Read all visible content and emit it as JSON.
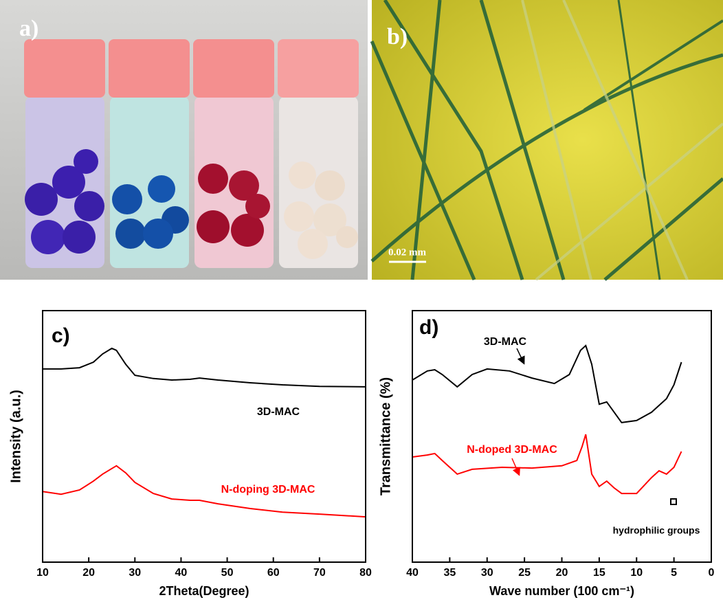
{
  "photos": {
    "a": {
      "label": "a)"
    },
    "b": {
      "label": "b)",
      "scale_bar": "0.02 mm"
    }
  },
  "chart_data": [
    {
      "type": "line",
      "panel_label": "c)",
      "xlabel": "2Theta(Degree)",
      "ylabel": "Intensity (a.u.)",
      "xlim": [
        10,
        80
      ],
      "xticks": [
        10,
        20,
        30,
        40,
        50,
        60,
        70,
        80
      ],
      "ylim": [
        0,
        100
      ],
      "series": [
        {
          "name": "3D-MAC",
          "color": "#000000",
          "x": [
            10,
            14,
            18,
            21,
            23,
            25,
            26,
            28,
            30,
            34,
            38,
            42,
            44,
            48,
            55,
            62,
            70,
            80
          ],
          "values": [
            76.8,
            76.8,
            77.3,
            79.5,
            82.8,
            85.0,
            84.2,
            78.7,
            74.3,
            73.0,
            72.4,
            72.7,
            73.2,
            72.4,
            71.3,
            70.5,
            69.9,
            69.7
          ]
        },
        {
          "name": "N-doping 3D-MAC",
          "color": "#ff0000",
          "x": [
            10,
            14,
            18,
            21,
            23,
            25,
            26,
            28,
            30,
            34,
            38,
            42,
            44,
            48,
            55,
            62,
            70,
            80
          ],
          "values": [
            28.1,
            27.0,
            28.7,
            32.2,
            35.0,
            37.2,
            38.3,
            35.5,
            31.7,
            27.3,
            25.1,
            24.6,
            24.6,
            23.2,
            21.3,
            19.9,
            19.1,
            18.0
          ]
        }
      ]
    },
    {
      "type": "line",
      "panel_label": "d)",
      "xlabel": "Wave number (100 cm⁻¹)",
      "ylabel": "Transmittance (%)",
      "xlim": [
        40,
        0
      ],
      "xticks": [
        40,
        35,
        30,
        25,
        20,
        15,
        10,
        5,
        0
      ],
      "ylim": [
        0,
        100
      ],
      "annotations": [
        "hydrophilic groups"
      ],
      "series": [
        {
          "name": "3D-MAC",
          "color": "#000000",
          "x": [
            40,
            38,
            37,
            36,
            34,
            32,
            30,
            27,
            24,
            21,
            19,
            17.5,
            16.8,
            16,
            15,
            14,
            12,
            10,
            8,
            6,
            5,
            4
          ],
          "values": [
            72.4,
            76.0,
            76.5,
            74.6,
            69.7,
            74.6,
            76.8,
            76.0,
            73.2,
            71.0,
            74.6,
            84.2,
            86.1,
            78.7,
            62.8,
            63.7,
            55.5,
            56.3,
            59.6,
            65.0,
            70.5,
            79.5
          ]
        },
        {
          "name": "N-doped 3D-MAC",
          "color": "#ff0000",
          "x": [
            40,
            38,
            37,
            36,
            34,
            32,
            28,
            24,
            20,
            18,
            17.3,
            16.8,
            16,
            15,
            14,
            13,
            12,
            10,
            8,
            7,
            6,
            5,
            4
          ],
          "values": [
            41.8,
            42.6,
            43.2,
            40.4,
            35.0,
            36.9,
            37.7,
            37.4,
            38.3,
            40.4,
            45.9,
            50.8,
            35.0,
            30.1,
            32.2,
            29.5,
            27.3,
            27.3,
            33.6,
            36.3,
            35.0,
            37.7,
            44.0
          ]
        }
      ]
    }
  ]
}
